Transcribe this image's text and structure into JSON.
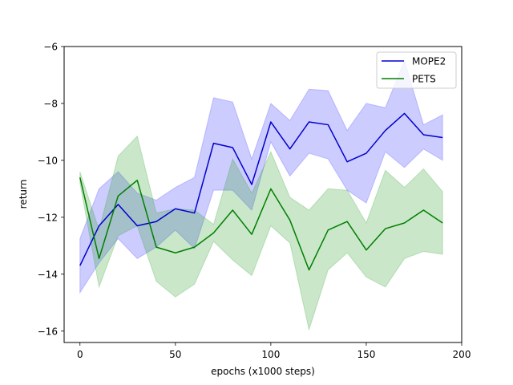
{
  "chart_data": {
    "type": "line",
    "title": "",
    "xlabel": "epochs (x1000 steps)",
    "ylabel": "return",
    "xlim": [
      -8.3,
      200
    ],
    "ylim": [
      -16.4,
      -6
    ],
    "xticks": [
      0,
      50,
      100,
      150,
      200
    ],
    "yticks": [
      -16,
      -14,
      -12,
      -10,
      -8,
      -6
    ],
    "xtick_labels": [
      "0",
      "50",
      "100",
      "150",
      "200"
    ],
    "ytick_labels": [
      "−16",
      "−14",
      "−12",
      "−10",
      "−8",
      "−6"
    ],
    "grid": false,
    "legend_position": "top-right",
    "x": [
      0,
      10,
      20,
      30,
      40,
      50,
      60,
      70,
      80,
      90,
      100,
      110,
      120,
      130,
      140,
      150,
      160,
      170,
      180,
      190
    ],
    "series": [
      {
        "name": "MOPE2",
        "color": "#0000cc",
        "fill_color": "#3333ff",
        "values": [
          -13.7,
          -12.3,
          -11.55,
          -12.3,
          -12.15,
          -11.7,
          -11.85,
          -9.4,
          -9.55,
          -10.85,
          -8.65,
          -9.6,
          -8.65,
          -8.75,
          -10.05,
          -9.75,
          -8.95,
          -8.35,
          -9.1,
          -9.2
        ],
        "lower": [
          -14.65,
          -13.6,
          -12.75,
          -13.45,
          -13.05,
          -12.45,
          -13.1,
          -11.05,
          -11.05,
          -11.75,
          -9.35,
          -10.55,
          -9.75,
          -9.95,
          -11.05,
          -11.5,
          -9.7,
          -10.25,
          -9.6,
          -10.0
        ],
        "upper": [
          -12.75,
          -11.0,
          -10.4,
          -11.15,
          -11.4,
          -10.95,
          -10.6,
          -7.8,
          -7.95,
          -9.95,
          -8.0,
          -8.6,
          -7.5,
          -7.55,
          -8.95,
          -8.0,
          -8.15,
          -6.5,
          -8.75,
          -8.4
        ]
      },
      {
        "name": "PETS",
        "color": "#007f00",
        "fill_color": "#2ca02c",
        "values": [
          -10.6,
          -13.45,
          -11.25,
          -10.7,
          -13.05,
          -13.25,
          -13.05,
          -12.55,
          -11.75,
          -12.6,
          -11.0,
          -12.1,
          -13.85,
          -12.45,
          -12.15,
          -13.15,
          -12.4,
          -12.2,
          -11.75,
          -12.2
        ],
        "lower": [
          -10.8,
          -14.45,
          -12.65,
          -12.3,
          -14.25,
          -14.8,
          -14.35,
          -12.85,
          -13.5,
          -14.05,
          -12.3,
          -12.9,
          -15.95,
          -13.85,
          -13.25,
          -14.1,
          -14.45,
          -13.45,
          -13.2,
          -13.3
        ],
        "upper": [
          -10.4,
          -12.45,
          -9.85,
          -9.15,
          -11.85,
          -11.7,
          -11.75,
          -12.25,
          -9.95,
          -11.15,
          -9.7,
          -11.3,
          -11.75,
          -11.0,
          -11.05,
          -12.2,
          -10.35,
          -10.95,
          -10.3,
          -11.1
        ]
      }
    ]
  }
}
